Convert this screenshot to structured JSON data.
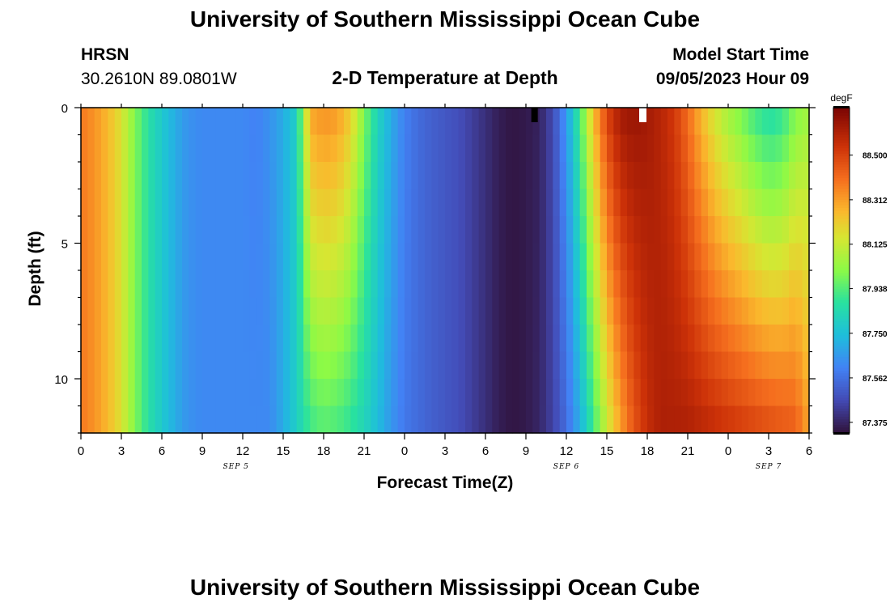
{
  "page": {
    "title": "University of Southern Mississippi Ocean Cube",
    "footer_title": "University of Southern Mississippi Ocean Cube",
    "station": "HRSN",
    "coordinates": "30.2610N  89.0801W",
    "plot_title": "2-D Temperature at Depth",
    "model_start_label": "Model Start Time",
    "model_start_value": "09/05/2023 Hour 09"
  },
  "chart_data": {
    "type": "heatmap",
    "title": "2-D Temperature at Depth",
    "xlabel": "Forecast Time(Z)",
    "ylabel": "Depth (ft)",
    "x_ticks": [
      "0",
      "3",
      "6",
      "9",
      "12",
      "15",
      "18",
      "21",
      "0",
      "3",
      "6",
      "9",
      "12",
      "15",
      "18",
      "21",
      "0",
      "3",
      "6"
    ],
    "x_range_hours": [
      0,
      54
    ],
    "date_labels": [
      {
        "text": "SEP 5",
        "hour": 11.5
      },
      {
        "text": "SEP 6",
        "hour": 36
      },
      {
        "text": "SEP 7",
        "hour": 51
      }
    ],
    "y_ticks": [
      "0",
      "5",
      "10"
    ],
    "y_range_ft": [
      0,
      12
    ],
    "y_inverted": true,
    "colorbar": {
      "unit": "degF",
      "labels": [
        "88.500",
        "88.312",
        "88.125",
        "87.938",
        "87.750",
        "87.562",
        "87.375"
      ],
      "min": 87.33,
      "max": 88.7
    },
    "grid": false,
    "time_profile_hours": [
      0,
      1,
      2,
      3,
      4,
      5,
      6,
      7,
      8,
      9,
      10,
      11,
      12,
      13,
      14,
      15,
      16,
      17,
      18,
      19,
      20,
      21,
      22,
      23,
      24,
      25,
      26,
      27,
      28,
      29,
      30,
      31,
      32,
      33,
      34,
      35,
      36,
      37,
      38,
      39,
      40,
      41,
      42,
      43,
      44,
      45,
      46,
      47,
      48,
      49,
      50,
      51,
      52,
      53,
      54
    ],
    "surface_temps_degF": [
      88.38,
      88.33,
      88.26,
      88.16,
      88.0,
      87.87,
      87.78,
      87.7,
      87.64,
      87.62,
      87.62,
      87.62,
      87.62,
      87.6,
      87.64,
      87.7,
      87.8,
      88.3,
      88.34,
      88.32,
      88.22,
      88.0,
      87.82,
      87.7,
      87.6,
      87.55,
      87.52,
      87.5,
      87.48,
      87.44,
      87.4,
      87.36,
      87.34,
      87.35,
      87.37,
      87.47,
      87.66,
      87.92,
      88.25,
      88.5,
      88.62,
      88.64,
      88.62,
      88.58,
      88.52,
      88.4,
      88.26,
      88.14,
      88.05,
      87.98,
      87.9,
      87.85,
      87.88,
      88.0,
      88.05
    ],
    "deep_temps_degF": [
      88.38,
      88.33,
      88.26,
      88.16,
      88.0,
      87.87,
      87.78,
      87.7,
      87.64,
      87.62,
      87.62,
      87.62,
      87.62,
      87.62,
      87.62,
      87.7,
      87.8,
      87.9,
      87.94,
      87.92,
      87.88,
      87.82,
      87.74,
      87.65,
      87.58,
      87.55,
      87.52,
      87.5,
      87.48,
      87.44,
      87.4,
      87.36,
      87.34,
      87.35,
      87.38,
      87.45,
      87.55,
      87.7,
      87.9,
      88.12,
      88.3,
      88.45,
      88.55,
      88.6,
      88.6,
      88.6,
      88.58,
      88.56,
      88.54,
      88.52,
      88.5,
      88.48,
      88.46,
      88.44,
      88.3
    ]
  }
}
